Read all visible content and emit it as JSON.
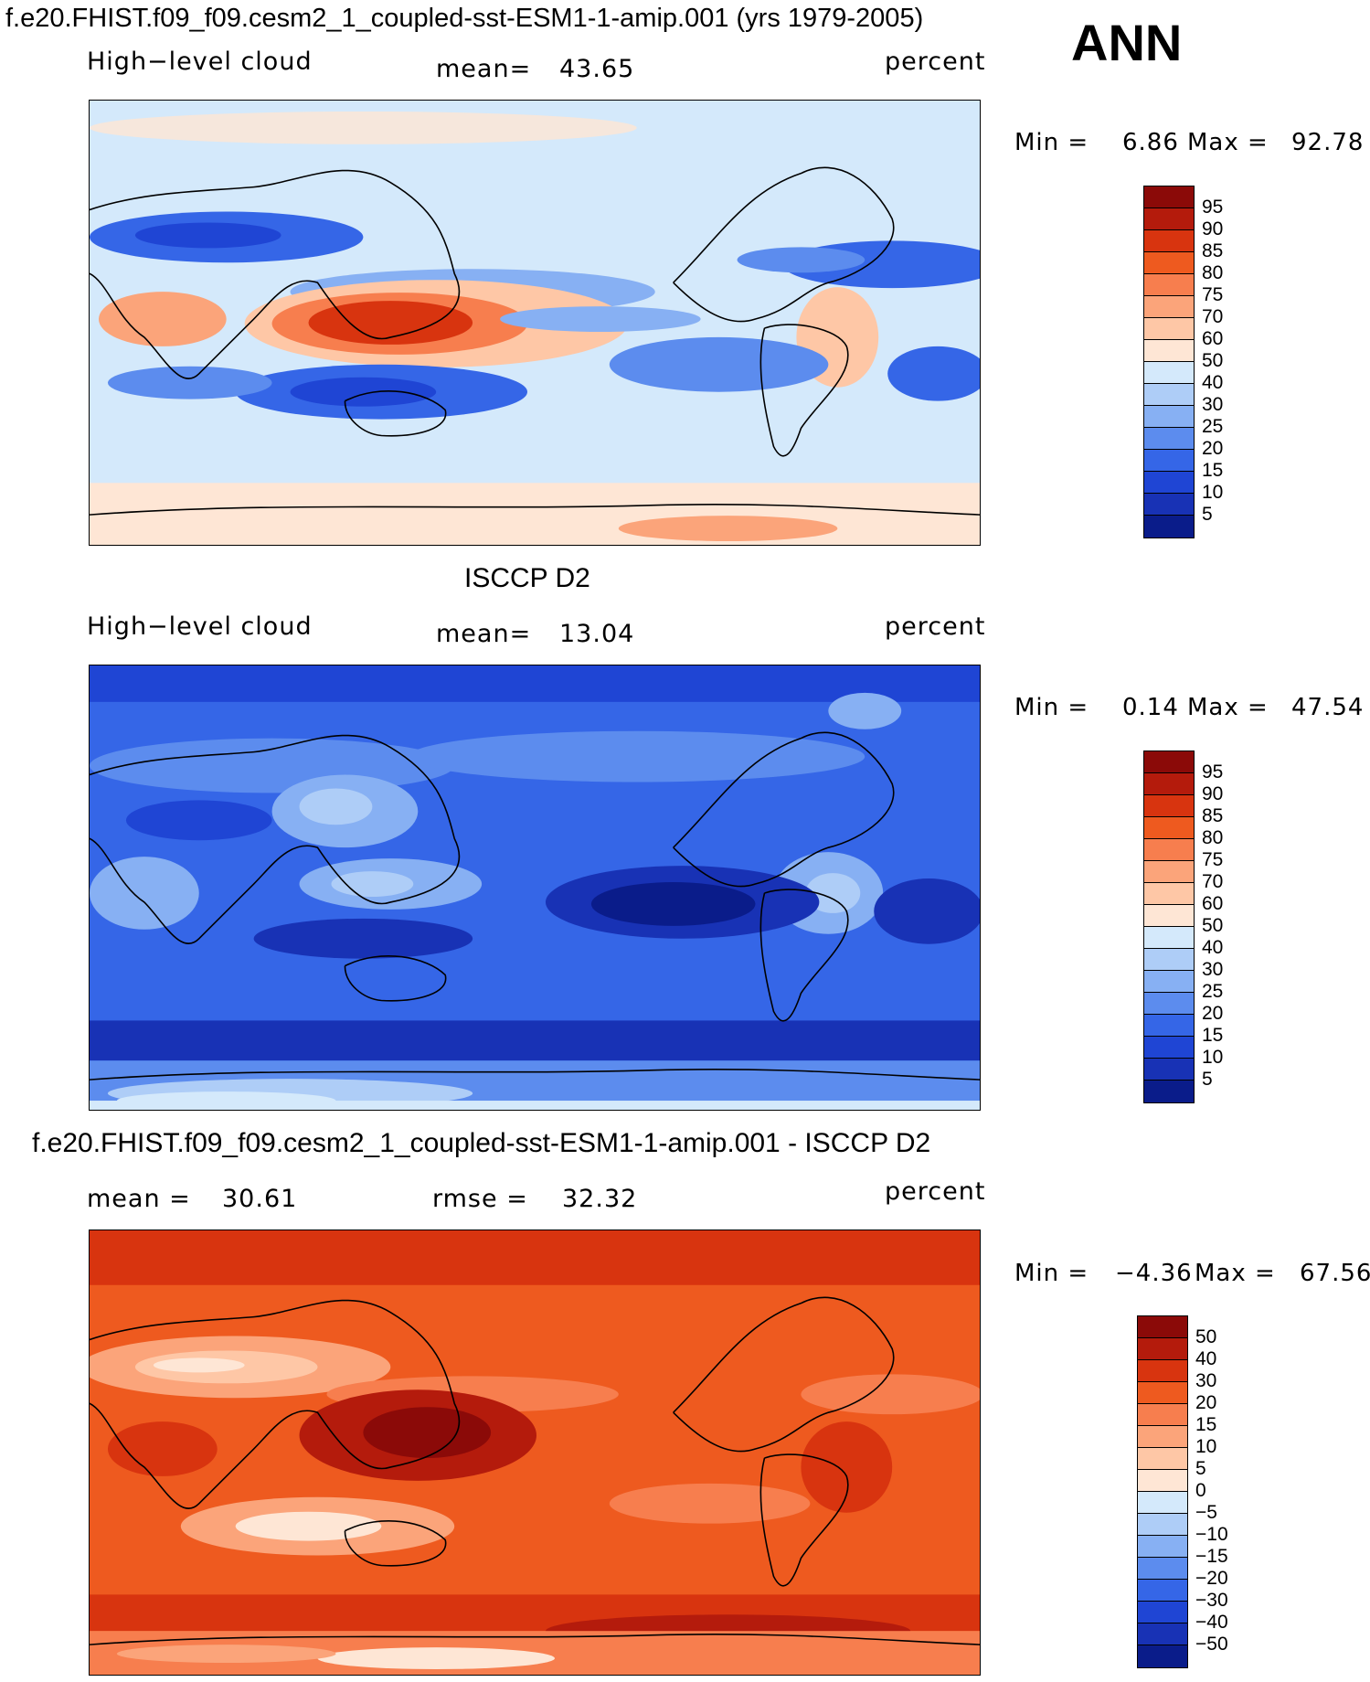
{
  "header": {
    "title": "f.e20.FHIST.f09_f09.cesm2_1_coupled-sst-ESM1-1-amip.001 (yrs 1979-2005)",
    "season": "ANN"
  },
  "panels": [
    {
      "id": "model",
      "title": "",
      "left_label": "High−level cloud",
      "center_label": "mean=",
      "center_value": "43.65",
      "right_label": "percent",
      "min_label": "Min =",
      "min_value": "6.86",
      "max_label": "Max =",
      "max_value": "92.78",
      "levels": [
        "95",
        "90",
        "85",
        "80",
        "75",
        "70",
        "60",
        "50",
        "40",
        "30",
        "25",
        "20",
        "15",
        "10",
        "5"
      ],
      "colors": [
        "#8b0a08",
        "#b41b0c",
        "#d8340f",
        "#ee5a1f",
        "#f77e4e",
        "#fba47a",
        "#fec7a6",
        "#fee6d5",
        "#d4e9fb",
        "#aecdf7",
        "#87b0f3",
        "#5c8cee",
        "#3566e7",
        "#1f45d4",
        "#1832b5",
        "#0a1c8a"
      ]
    },
    {
      "id": "obs",
      "title": "ISCCP D2",
      "left_label": "High−level cloud",
      "center_label": "mean=",
      "center_value": "13.04",
      "right_label": "percent",
      "min_label": "Min =",
      "min_value": "0.14",
      "max_label": "Max =",
      "max_value": "47.54",
      "levels": [
        "95",
        "90",
        "85",
        "80",
        "75",
        "70",
        "60",
        "50",
        "40",
        "30",
        "25",
        "20",
        "15",
        "10",
        "5"
      ],
      "colors": [
        "#8b0a08",
        "#b41b0c",
        "#d8340f",
        "#ee5a1f",
        "#f77e4e",
        "#fba47a",
        "#fec7a6",
        "#fee6d5",
        "#d4e9fb",
        "#aecdf7",
        "#87b0f3",
        "#5c8cee",
        "#3566e7",
        "#1f45d4",
        "#1832b5",
        "#0a1c8a"
      ]
    },
    {
      "id": "diff",
      "title": "f.e20.FHIST.f09_f09.cesm2_1_coupled-sst-ESM1-1-amip.001 - ISCCP D2",
      "left_label": "mean =",
      "left_value": "30.61",
      "center_label": "rmse =",
      "center_value": "32.32",
      "right_label": "percent",
      "min_label": "Min =",
      "min_value": "−4.36",
      "max_label": "Max =",
      "max_value": "67.56",
      "levels": [
        "50",
        "40",
        "30",
        "20",
        "15",
        "10",
        "5",
        "0",
        "−5",
        "−10",
        "−15",
        "−20",
        "−30",
        "−40",
        "−50"
      ],
      "colors": [
        "#8b0a08",
        "#b41b0c",
        "#d8340f",
        "#ee5a1f",
        "#f77e4e",
        "#fba47a",
        "#fec7a6",
        "#fee6d5",
        "#d4e9fb",
        "#aecdf7",
        "#87b0f3",
        "#5c8cee",
        "#3566e7",
        "#1f45d4",
        "#1832b5",
        "#0a1c8a"
      ]
    }
  ]
}
